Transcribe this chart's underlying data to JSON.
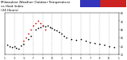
{
  "title": "Milwaukee Weather Outdoor Temperature",
  "title2": "vs Heat Index",
  "title3": "(24 Hours)",
  "title_fontsize": 3.0,
  "background_color": "#ffffff",
  "plot_bg_color": "#ffffff",
  "grid_color": "#aaaaaa",
  "dot_color_temp": "#000000",
  "dot_color_heat": "#cc0000",
  "legend_blue": "#3333bb",
  "legend_red": "#cc2222",
  "ylim": [
    30,
    80
  ],
  "xlim": [
    0,
    24
  ],
  "yticks": [
    30,
    40,
    50,
    60,
    70,
    80
  ],
  "xticks": [
    0,
    2,
    4,
    6,
    8,
    10,
    12,
    14,
    16,
    18,
    20,
    22,
    24
  ],
  "xtick_labels": [
    "1",
    "3",
    "5",
    "7",
    "9",
    "11",
    "1",
    "3",
    "5",
    "7",
    "9",
    "11",
    "1"
  ],
  "ytick_labels": [
    "30",
    "40",
    "50",
    "60",
    "70",
    "80"
  ],
  "temp_x": [
    0.5,
    1.0,
    1.5,
    2.0,
    2.5,
    3.0,
    3.5,
    4.0,
    5.0,
    5.5,
    6.5,
    7.0,
    7.5,
    8.0,
    8.5,
    9.0,
    9.5,
    10.0,
    10.5,
    11.0,
    11.5,
    12.0,
    12.5,
    13.0,
    14.0,
    15.0,
    16.0,
    17.0,
    18.0,
    19.0,
    20.0,
    21.0,
    22.0,
    23.0
  ],
  "temp_y": [
    42,
    40,
    39,
    40,
    38,
    37,
    41,
    43,
    48,
    52,
    60,
    62,
    63,
    65,
    64,
    65,
    63,
    62,
    60,
    59,
    57,
    55,
    52,
    50,
    48,
    47,
    48,
    46,
    45,
    44,
    43,
    42,
    40,
    39
  ],
  "heat_x": [
    4.0,
    4.5,
    5.0,
    5.5,
    6.0,
    6.5,
    7.0,
    7.5,
    8.0,
    8.5
  ],
  "heat_y": [
    46,
    50,
    55,
    60,
    65,
    68,
    70,
    68,
    65,
    60
  ],
  "dot_size": 1.5
}
